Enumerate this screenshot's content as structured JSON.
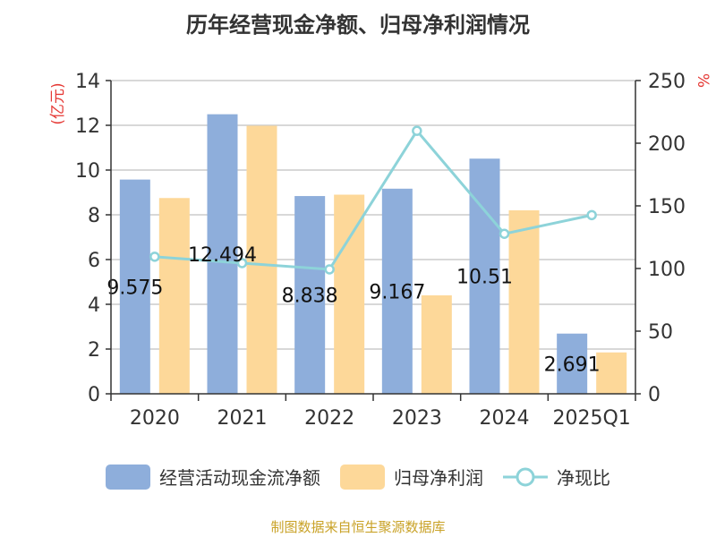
{
  "chart_data": {
    "type": "bar",
    "title": "历年经营现金净额、归母净利润情况",
    "categories": [
      "2020",
      "2021",
      "2022",
      "2023",
      "2024",
      "2025Q1"
    ],
    "y_left": {
      "label": "(亿元)",
      "range": [
        0,
        14
      ],
      "ticks": [
        0,
        2,
        4,
        6,
        8,
        10,
        12,
        14
      ]
    },
    "y_right": {
      "label": "%",
      "range": [
        0,
        250
      ],
      "ticks": [
        0,
        50,
        100,
        150,
        200,
        250
      ]
    },
    "series": [
      {
        "name": "经营活动现金流净额",
        "type": "bar",
        "axis": "left",
        "color": "#8eaedb",
        "values": [
          9.575,
          12.494,
          8.838,
          9.167,
          10.51,
          2.691
        ],
        "labels": [
          "9.575",
          "12.494",
          "8.838",
          "9.167",
          "10.51",
          "2.691"
        ]
      },
      {
        "name": "归母净利润",
        "type": "bar",
        "axis": "left",
        "color": "#fdd899",
        "values": [
          8.75,
          11.98,
          8.9,
          4.4,
          8.2,
          1.85
        ]
      },
      {
        "name": "净现比",
        "type": "line",
        "axis": "right",
        "color": "#8dd3d9",
        "values": [
          109.4,
          104.3,
          99.3,
          209.9,
          127.7,
          142.6
        ]
      }
    ],
    "grid": true,
    "legend_position": "bottom"
  },
  "source": "制图数据来自恒生聚源数据库"
}
